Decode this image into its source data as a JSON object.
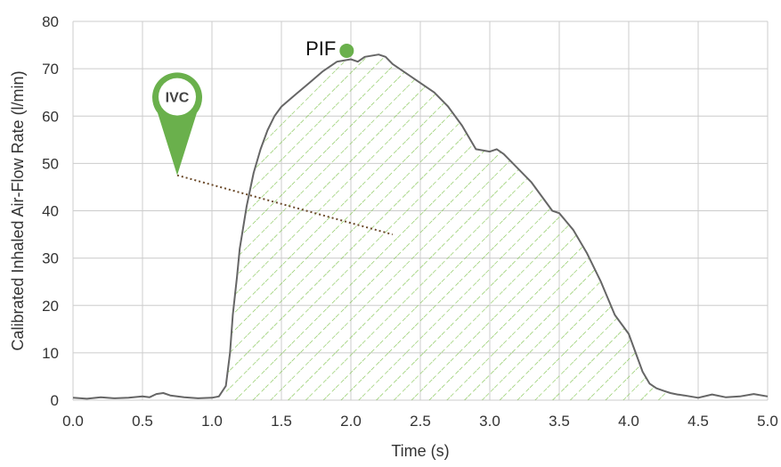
{
  "chart_data": {
    "type": "area",
    "title": "",
    "xlabel": "Time (s)",
    "ylabel": "Calibrated Inhaled Air-Flow Rate (l/min)",
    "xlim": [
      0,
      5
    ],
    "ylim": [
      0,
      80
    ],
    "x_ticks": [
      "0.0",
      "0.5",
      "1.0",
      "1.5",
      "2.0",
      "2.5",
      "3.0",
      "3.5",
      "4.0",
      "4.5",
      "5.0"
    ],
    "y_ticks": [
      "0",
      "10",
      "20",
      "30",
      "40",
      "50",
      "60",
      "70",
      "80"
    ],
    "grid": true,
    "fill_range": [
      1.1,
      4.3
    ],
    "series": [
      {
        "x": [
          0.0,
          0.1,
          0.2,
          0.3,
          0.4,
          0.5,
          0.55,
          0.6,
          0.65,
          0.7,
          0.8,
          0.9,
          1.0,
          1.05,
          1.1,
          1.13,
          1.15,
          1.18,
          1.2,
          1.25,
          1.3,
          1.35,
          1.4,
          1.45,
          1.5,
          1.6,
          1.7,
          1.8,
          1.9,
          2.0,
          2.05,
          2.1,
          2.2,
          2.25,
          2.3,
          2.4,
          2.5,
          2.6,
          2.7,
          2.8,
          2.9,
          3.0,
          3.05,
          3.1,
          3.2,
          3.3,
          3.4,
          3.45,
          3.5,
          3.6,
          3.7,
          3.8,
          3.9,
          4.0,
          4.05,
          4.1,
          4.15,
          4.2,
          4.25,
          4.3,
          4.35,
          4.4,
          4.5,
          4.6,
          4.7,
          4.8,
          4.9,
          5.0
        ],
        "y": [
          0.5,
          0.3,
          0.6,
          0.4,
          0.5,
          0.8,
          0.6,
          1.3,
          1.5,
          1.0,
          0.6,
          0.4,
          0.5,
          0.8,
          3,
          10,
          18,
          26,
          32,
          41,
          48,
          53,
          57,
          60,
          62,
          64.5,
          67,
          69.5,
          71.5,
          72,
          71.5,
          72.5,
          73,
          72.5,
          71,
          69,
          67,
          65,
          62,
          58,
          53,
          52.5,
          53,
          52,
          49,
          46,
          42,
          40,
          39.5,
          36,
          31,
          25,
          18,
          14,
          10,
          6,
          3.5,
          2.5,
          2,
          1.5,
          1.2,
          1.0,
          0.5,
          1.2,
          0.6,
          0.8,
          1.3,
          0.8
        ]
      }
    ],
    "annotations": [
      {
        "label": "PIF",
        "x": 1.97,
        "y": 73.8,
        "color": "#6ab04c"
      },
      {
        "label": "IVC",
        "x": 0.75,
        "y": 47.5,
        "color": "#6ab04c",
        "dotted_to": [
          2.3,
          35
        ]
      }
    ]
  },
  "colors": {
    "line": "#666666",
    "hatch": "#7dc24b",
    "marker": "#6ab04c",
    "grid": "#cccccc",
    "pin": "#6ab04c",
    "dotted": "#6b4a2a"
  }
}
